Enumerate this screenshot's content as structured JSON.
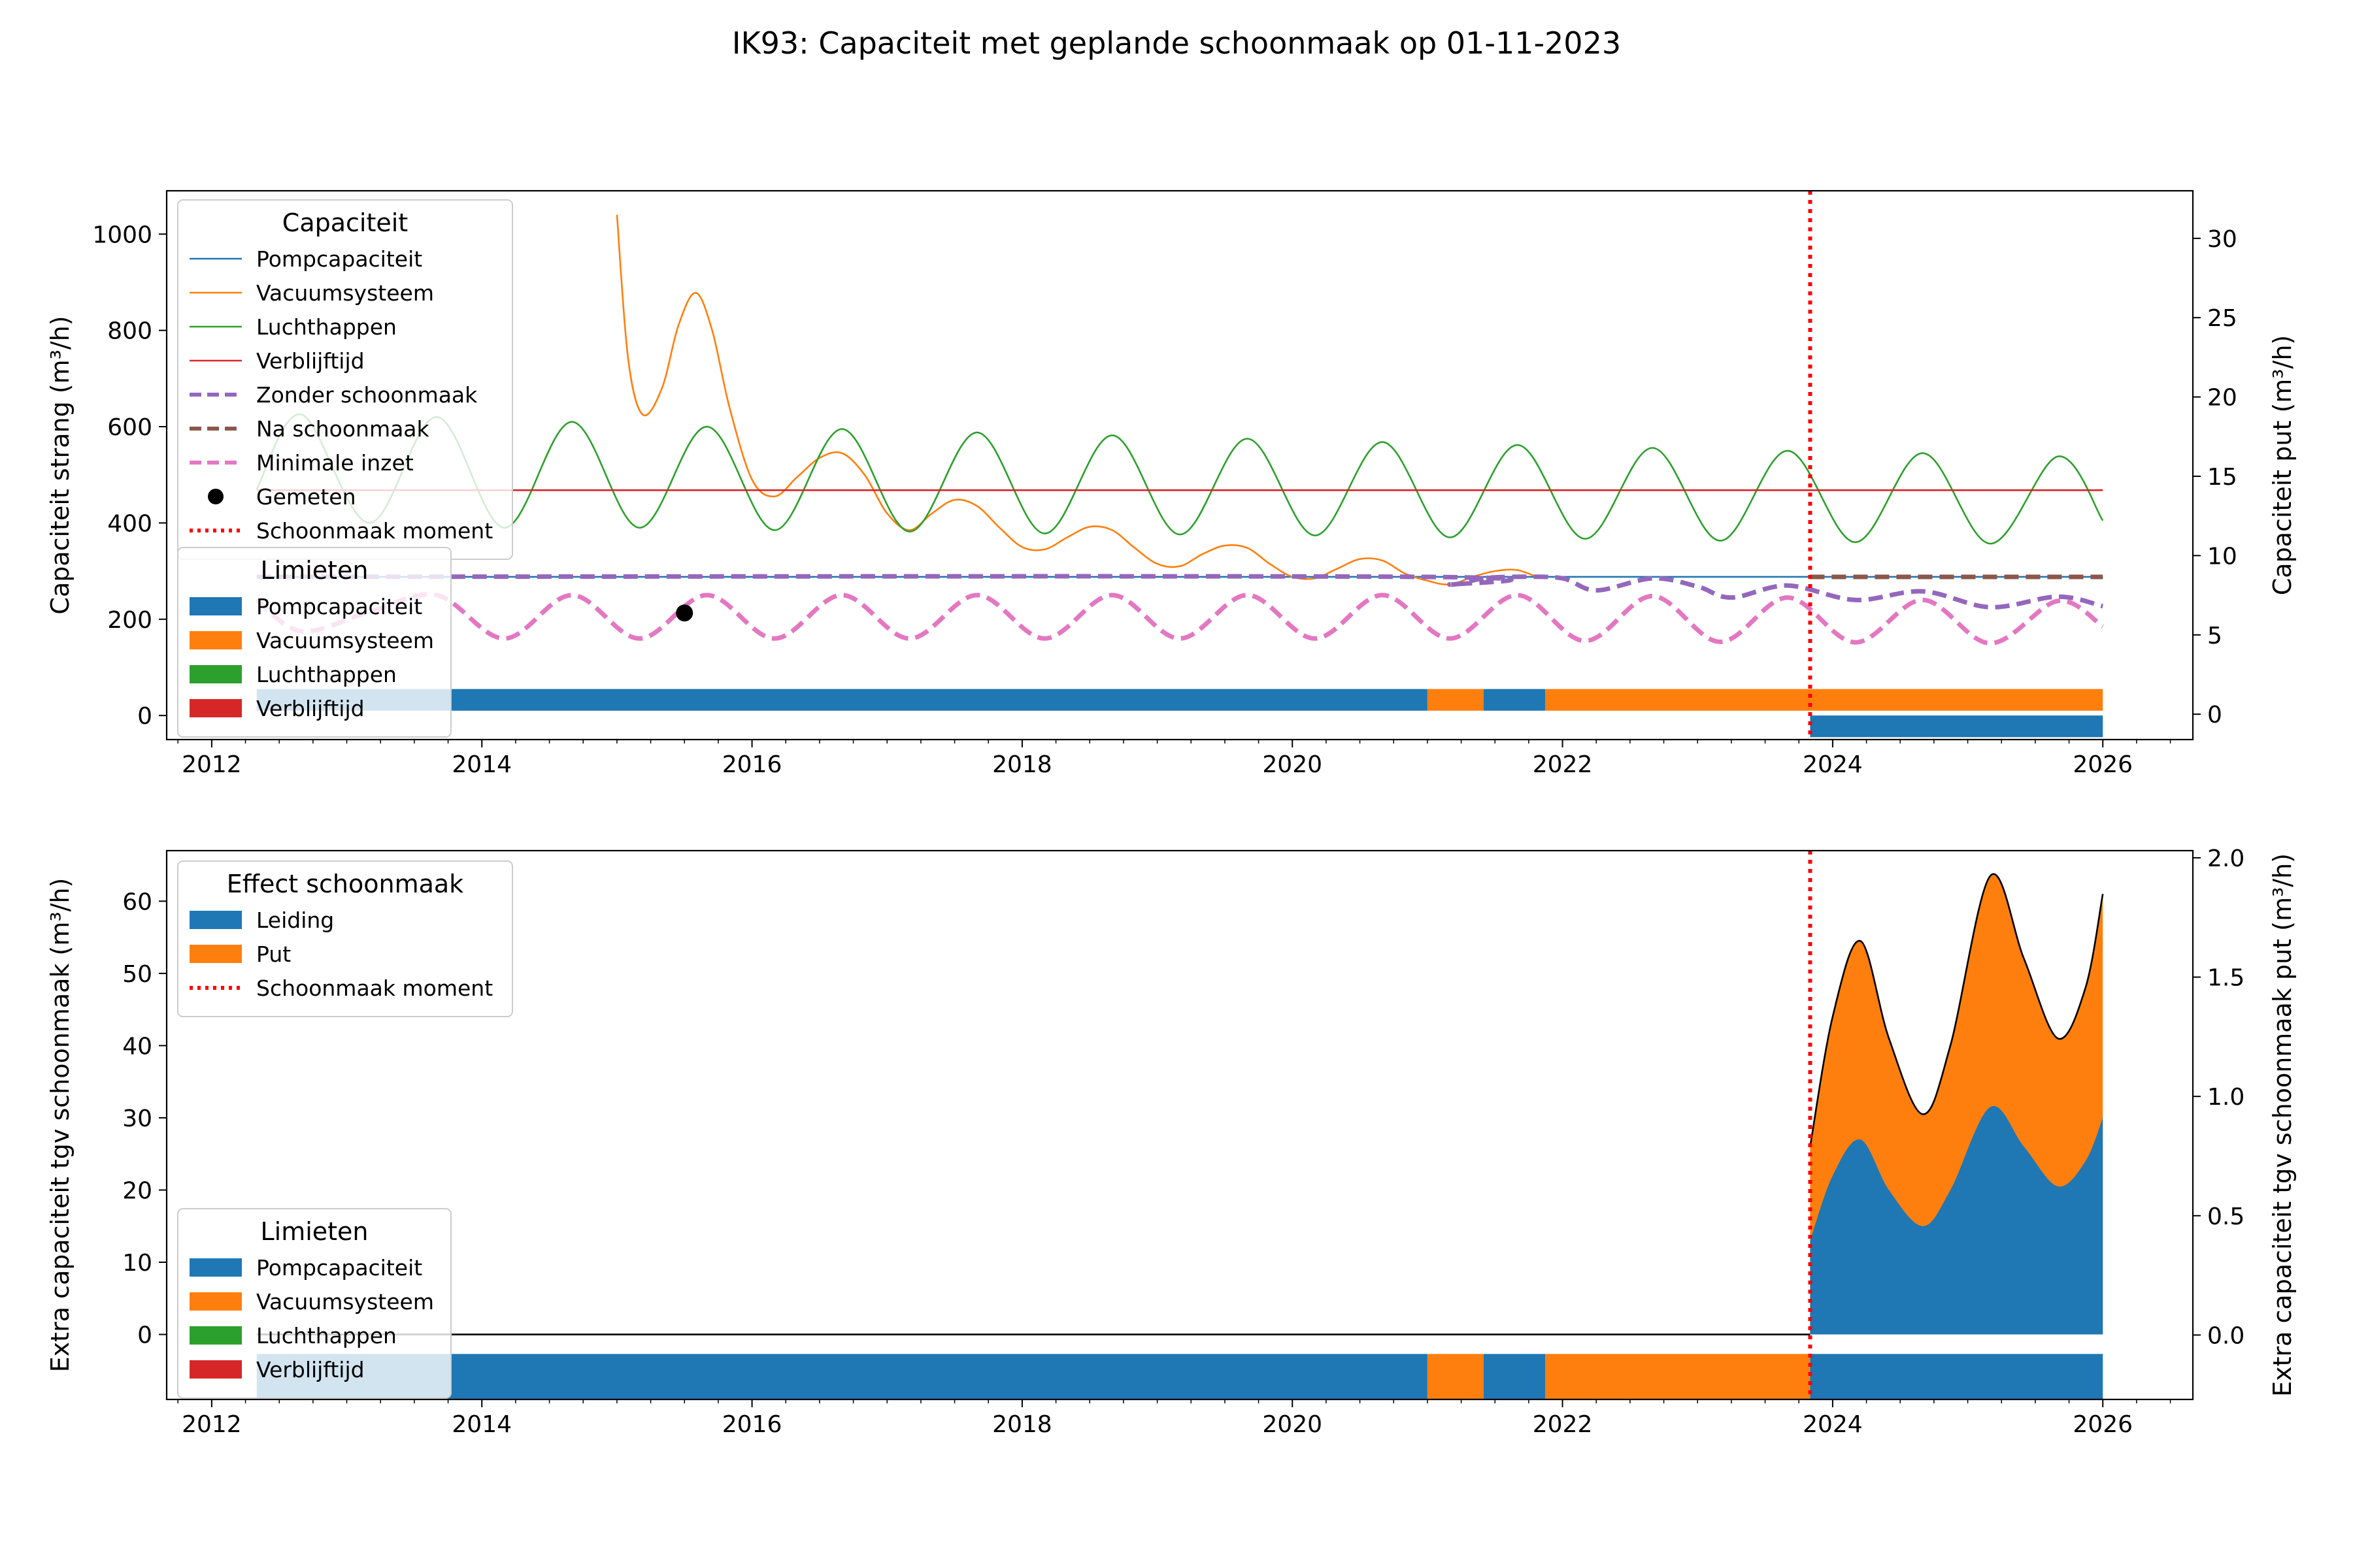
{
  "figure": {
    "title": "IK93: Capaciteit met geplande schoonmaak op 01-11-2023"
  },
  "colors": {
    "blue": "#1f77b4",
    "orange": "#ff7f0e",
    "green": "#2ca02c",
    "red": "#d62728",
    "purple": "#9467bd",
    "brown": "#8c564b",
    "pink": "#e377c2",
    "marker": "#000000",
    "cleaning_line": "#ff0000"
  },
  "chart_data": [
    {
      "type": "line",
      "x_type": "date",
      "xlim": [
        "2011-09-01",
        "2026-09-01"
      ],
      "xticks": [
        "2012",
        "2014",
        "2016",
        "2018",
        "2020",
        "2022",
        "2024",
        "2026"
      ],
      "ylim": [
        -50,
        1090
      ],
      "yticks": [
        0,
        200,
        400,
        600,
        800,
        1000
      ],
      "ylabel": "Capaciteit strang (m³/h)",
      "y2lim": [
        -1.6,
        33
      ],
      "y2ticks": [
        0,
        5,
        10,
        15,
        20,
        25,
        30
      ],
      "y2label": "Capaciteit put (m³/h)",
      "legend_capaciteit": {
        "title": "Capaciteit",
        "entries": [
          "Pompcapaciteit",
          "Vacuumsysteem",
          "Luchthappen",
          "Verblijftijd",
          "Zonder schoonmaak",
          "Na schoonmaak",
          "Minimale inzet",
          "Gemeten",
          "Schoonmaak moment"
        ]
      },
      "legend_limieten": {
        "title": "Limieten",
        "entries": [
          "Pompcapaciteit",
          "Vacuumsysteem",
          "Luchthappen",
          "Verblijftijd"
        ]
      },
      "series": [
        {
          "name": "Pompcapaciteit",
          "style": "solid",
          "color": "blue",
          "points": [
            [
              "2012-05-01",
              288
            ],
            [
              "2026-01-01",
              288
            ]
          ]
        },
        {
          "name": "Vacuumsysteem",
          "style": "solid",
          "color": "orange",
          "points": [
            [
              "2015-01-01",
              1040
            ],
            [
              "2015-02-01",
              740
            ],
            [
              "2015-03-10",
              625
            ],
            [
              "2015-05-01",
              680
            ],
            [
              "2015-06-15",
              810
            ],
            [
              "2015-08-01",
              878
            ],
            [
              "2015-09-15",
              800
            ],
            [
              "2015-11-01",
              640
            ],
            [
              "2016-01-01",
              490
            ],
            [
              "2016-03-01",
              455
            ],
            [
              "2016-05-01",
              495
            ],
            [
              "2016-07-01",
              535
            ],
            [
              "2016-09-01",
              545
            ],
            [
              "2016-11-01",
              500
            ],
            [
              "2017-01-01",
              420
            ],
            [
              "2017-03-01",
              385
            ],
            [
              "2017-05-01",
              420
            ],
            [
              "2017-07-01",
              448
            ],
            [
              "2017-09-01",
              435
            ],
            [
              "2017-11-01",
              390
            ],
            [
              "2018-01-01",
              350
            ],
            [
              "2018-03-01",
              345
            ],
            [
              "2018-05-01",
              370
            ],
            [
              "2018-07-01",
              392
            ],
            [
              "2018-09-01",
              385
            ],
            [
              "2018-11-01",
              348
            ],
            [
              "2019-01-01",
              315
            ],
            [
              "2019-03-01",
              310
            ],
            [
              "2019-05-01",
              335
            ],
            [
              "2019-07-01",
              353
            ],
            [
              "2019-09-01",
              348
            ],
            [
              "2019-11-01",
              315
            ],
            [
              "2020-01-01",
              288
            ],
            [
              "2020-03-01",
              285
            ],
            [
              "2020-05-01",
              305
            ],
            [
              "2020-07-01",
              325
            ],
            [
              "2020-09-01",
              322
            ],
            [
              "2020-11-01",
              295
            ],
            [
              "2021-01-01",
              280
            ],
            [
              "2021-03-01",
              272
            ],
            [
              "2021-05-01",
              288
            ],
            [
              "2021-07-01",
              300
            ],
            [
              "2021-09-01",
              302
            ],
            [
              "2021-11-01",
              285
            ]
          ]
        },
        {
          "name": "Luchthappen",
          "style": "solid",
          "color": "green",
          "points": [
            [
              "2012-05-01",
              470
            ],
            [
              "2012-09-01",
              625
            ],
            [
              "2013-03-01",
              400
            ],
            [
              "2013-09-01",
              620
            ],
            [
              "2014-03-01",
              390
            ],
            [
              "2014-09-01",
              610
            ],
            [
              "2015-03-01",
              390
            ],
            [
              "2015-09-01",
              600
            ],
            [
              "2016-03-01",
              385
            ],
            [
              "2016-09-01",
              595
            ],
            [
              "2017-03-01",
              382
            ],
            [
              "2017-09-01",
              588
            ],
            [
              "2018-03-01",
              378
            ],
            [
              "2018-09-01",
              582
            ],
            [
              "2019-03-01",
              376
            ],
            [
              "2019-09-01",
              575
            ],
            [
              "2020-03-01",
              374
            ],
            [
              "2020-09-01",
              568
            ],
            [
              "2021-03-01",
              370
            ],
            [
              "2021-09-01",
              562
            ],
            [
              "2022-03-01",
              367
            ],
            [
              "2022-09-01",
              556
            ],
            [
              "2023-03-01",
              363
            ],
            [
              "2023-09-01",
              550
            ],
            [
              "2024-03-01",
              360
            ],
            [
              "2024-09-01",
              545
            ],
            [
              "2025-03-01",
              357
            ],
            [
              "2025-09-01",
              538
            ],
            [
              "2026-01-01",
              405
            ]
          ]
        },
        {
          "name": "Verblijftijd",
          "style": "solid",
          "color": "red",
          "points": [
            [
              "2012-05-01",
              468
            ],
            [
              "2026-01-01",
              468
            ]
          ]
        },
        {
          "name": "Zonder schoonmaak",
          "style": "dashed",
          "color": "purple",
          "points": [
            [
              "2012-05-01",
              288
            ],
            [
              "2020-12-01",
              288
            ],
            [
              "2021-03-01",
              272
            ],
            [
              "2021-06-01",
              285
            ],
            [
              "2021-09-01",
              288
            ],
            [
              "2022-01-01",
              285
            ],
            [
              "2022-04-01",
              260
            ],
            [
              "2022-09-01",
              285
            ],
            [
              "2023-01-01",
              268
            ],
            [
              "2023-04-01",
              245
            ],
            [
              "2023-09-01",
              270
            ],
            [
              "2024-03-01",
              240
            ],
            [
              "2024-09-01",
              258
            ],
            [
              "2025-03-01",
              225
            ],
            [
              "2025-09-01",
              247
            ],
            [
              "2026-01-01",
              227
            ]
          ]
        },
        {
          "name": "Na schoonmaak",
          "style": "dashed",
          "color": "brown",
          "points": [
            [
              "2023-11-01",
              288
            ],
            [
              "2026-01-01",
              288
            ]
          ]
        },
        {
          "name": "Minimale inzet",
          "style": "dashed",
          "color": "pink",
          "points": [
            [
              "2012-05-01",
              240
            ],
            [
              "2012-09-01",
              175
            ],
            [
              "2013-03-01",
              215
            ],
            [
              "2013-09-01",
              250
            ],
            [
              "2014-03-01",
              160
            ],
            [
              "2014-09-01",
              250
            ],
            [
              "2015-03-01",
              160
            ],
            [
              "2015-09-01",
              250
            ],
            [
              "2016-03-01",
              160
            ],
            [
              "2016-09-01",
              250
            ],
            [
              "2017-03-01",
              160
            ],
            [
              "2017-09-01",
              250
            ],
            [
              "2018-03-01",
              160
            ],
            [
              "2018-09-01",
              250
            ],
            [
              "2019-03-01",
              160
            ],
            [
              "2019-09-01",
              250
            ],
            [
              "2020-03-01",
              160
            ],
            [
              "2020-09-01",
              250
            ],
            [
              "2021-03-01",
              160
            ],
            [
              "2021-09-01",
              250
            ],
            [
              "2022-03-01",
              155
            ],
            [
              "2022-09-01",
              248
            ],
            [
              "2023-03-01",
              153
            ],
            [
              "2023-09-01",
              245
            ],
            [
              "2024-03-01",
              152
            ],
            [
              "2024-09-01",
              240
            ],
            [
              "2025-03-01",
              150
            ],
            [
              "2025-09-01",
              238
            ],
            [
              "2026-01-01",
              185
            ]
          ]
        }
      ],
      "measured": {
        "name": "Gemeten",
        "date": "2015-07-01",
        "value": 213
      },
      "cleaning_moment": {
        "name": "Schoonmaak moment",
        "date": "2023-11-01"
      },
      "limit_bars": [
        {
          "row": 1,
          "y_range": [
            10,
            55
          ],
          "segments": [
            {
              "start": "2012-05-01",
              "end": "2021-01-01",
              "limit": "Pompcapaciteit",
              "color": "blue"
            },
            {
              "start": "2021-01-01",
              "end": "2021-06-01",
              "limit": "Vacuumsysteem",
              "color": "orange"
            },
            {
              "start": "2021-06-01",
              "end": "2021-11-15",
              "limit": "Pompcapaciteit",
              "color": "blue"
            },
            {
              "start": "2021-11-15",
              "end": "2026-01-01",
              "limit": "Vacuumsysteem",
              "color": "orange"
            }
          ]
        },
        {
          "row": 2,
          "y_range": [
            -45,
            0
          ],
          "segments": [
            {
              "start": "2023-11-01",
              "end": "2026-01-01",
              "limit": "Pompcapaciteit",
              "color": "blue"
            }
          ]
        }
      ]
    },
    {
      "type": "area",
      "x_type": "date",
      "xlim": [
        "2011-09-01",
        "2026-09-01"
      ],
      "xticks": [
        "2012",
        "2014",
        "2016",
        "2018",
        "2020",
        "2022",
        "2024",
        "2026"
      ],
      "ylim": [
        -9,
        67
      ],
      "yticks": [
        0,
        10,
        20,
        30,
        40,
        50,
        60
      ],
      "ylabel": "Extra capaciteit tgv schoonmaak (m³/h)",
      "y2lim": [
        -0.27,
        2.03
      ],
      "y2ticks": [
        0.0,
        0.5,
        1.0,
        1.5,
        2.0
      ],
      "y2label": "Extra capaciteit tgv schoonmaak put (m³/h)",
      "legend_effect": {
        "title": "Effect schoonmaak",
        "entries": [
          "Leiding",
          "Put",
          "Schoonmaak moment"
        ]
      },
      "legend_limieten": {
        "title": "Limieten",
        "entries": [
          "Pompcapaciteit",
          "Vacuumsysteem",
          "Luchthappen",
          "Verblijftijd"
        ]
      },
      "series": [
        {
          "name": "Leiding",
          "color": "blue",
          "points": [
            [
              "2023-11-01",
              13
            ],
            [
              "2024-01-01",
              22
            ],
            [
              "2024-03-15",
              27
            ],
            [
              "2024-06-01",
              20
            ],
            [
              "2024-09-01",
              15
            ],
            [
              "2024-11-15",
              20
            ],
            [
              "2025-03-01",
              31.5
            ],
            [
              "2025-06-01",
              26
            ],
            [
              "2025-09-01",
              20.5
            ],
            [
              "2025-11-15",
              24
            ],
            [
              "2026-01-01",
              30
            ]
          ]
        },
        {
          "name": "Put",
          "color": "orange",
          "points": [
            [
              "2023-11-01",
              26
            ],
            [
              "2024-01-01",
              44
            ],
            [
              "2024-03-15",
              54.5
            ],
            [
              "2024-06-01",
              41
            ],
            [
              "2024-09-01",
              30.5
            ],
            [
              "2024-11-15",
              40
            ],
            [
              "2025-03-01",
              63.5
            ],
            [
              "2025-06-01",
              52
            ],
            [
              "2025-09-01",
              41
            ],
            [
              "2025-11-15",
              48
            ],
            [
              "2026-01-01",
              61
            ]
          ]
        }
      ],
      "baseline": {
        "start": "2012-05-01",
        "end": "2023-11-01",
        "value": 0
      },
      "cleaning_moment": {
        "name": "Schoonmaak moment",
        "date": "2023-11-01"
      },
      "limit_bars": [
        {
          "row": 1,
          "y_range": [
            -9,
            -2.7
          ],
          "segments": [
            {
              "start": "2012-05-01",
              "end": "2021-01-01",
              "limit": "Pompcapaciteit",
              "color": "blue"
            },
            {
              "start": "2021-01-01",
              "end": "2021-06-01",
              "limit": "Vacuumsysteem",
              "color": "orange"
            },
            {
              "start": "2021-06-01",
              "end": "2021-11-15",
              "limit": "Pompcapaciteit",
              "color": "blue"
            },
            {
              "start": "2021-11-15",
              "end": "2023-11-01",
              "limit": "Vacuumsysteem",
              "color": "orange"
            },
            {
              "start": "2023-11-01",
              "end": "2026-01-01",
              "limit": "Pompcapaciteit",
              "color": "blue"
            }
          ]
        }
      ]
    }
  ]
}
